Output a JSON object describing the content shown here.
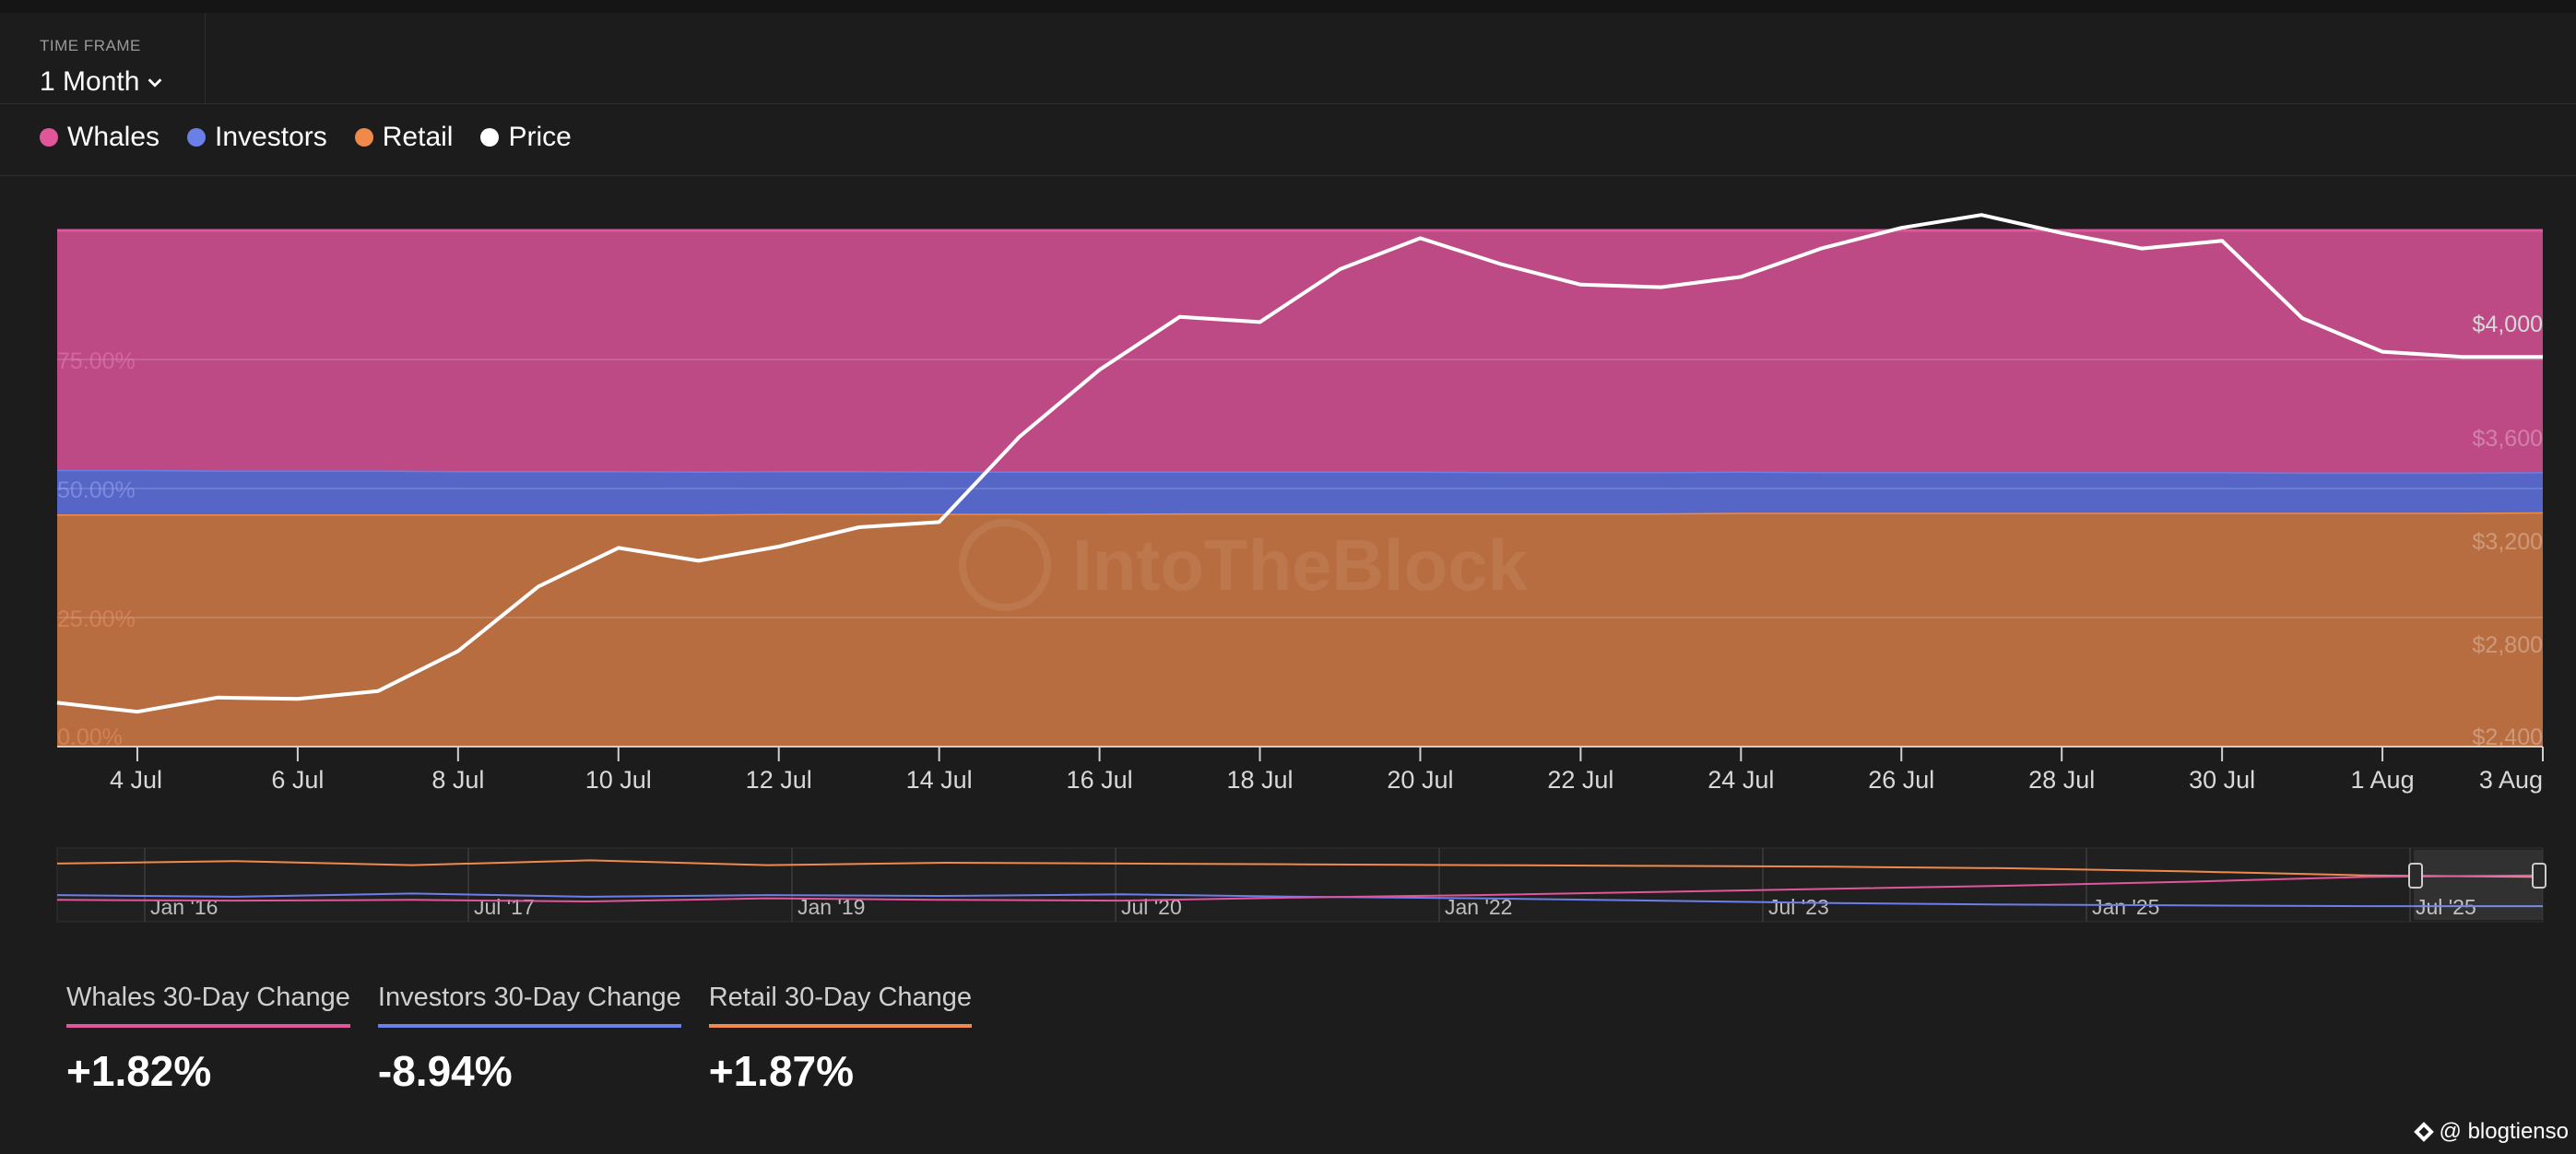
{
  "timeframe": {
    "label": "TIME FRAME",
    "value": "1 Month"
  },
  "legend": [
    {
      "name": "Whales",
      "color": "#e1559a"
    },
    {
      "name": "Investors",
      "color": "#6a7fe8"
    },
    {
      "name": "Retail",
      "color": "#f08a4b"
    },
    {
      "name": "Price",
      "color": "#ffffff"
    }
  ],
  "watermark": "IntoTheBlock",
  "chart_data": {
    "type": "area",
    "stacked_percent": true,
    "x": [
      "3 Jul",
      "4 Jul",
      "5 Jul",
      "6 Jul",
      "7 Jul",
      "8 Jul",
      "9 Jul",
      "10 Jul",
      "11 Jul",
      "12 Jul",
      "13 Jul",
      "14 Jul",
      "15 Jul",
      "16 Jul",
      "17 Jul",
      "18 Jul",
      "19 Jul",
      "20 Jul",
      "21 Jul",
      "22 Jul",
      "23 Jul",
      "24 Jul",
      "25 Jul",
      "26 Jul",
      "27 Jul",
      "28 Jul",
      "29 Jul",
      "30 Jul",
      "31 Jul",
      "1 Aug",
      "2 Aug",
      "3 Aug"
    ],
    "x_tick_labels": [
      "4 Jul",
      "6 Jul",
      "8 Jul",
      "10 Jul",
      "12 Jul",
      "14 Jul",
      "16 Jul",
      "18 Jul",
      "20 Jul",
      "22 Jul",
      "24 Jul",
      "26 Jul",
      "28 Jul",
      "30 Jul",
      "1 Aug",
      "3 Aug"
    ],
    "series": [
      {
        "name": "Retail",
        "axis": "left",
        "values": [
          45.0,
          45.0,
          45.0,
          45.0,
          45.0,
          45.0,
          45.0,
          45.0,
          45.0,
          45.1,
          45.1,
          45.1,
          45.1,
          45.1,
          45.2,
          45.2,
          45.2,
          45.2,
          45.2,
          45.2,
          45.2,
          45.3,
          45.3,
          45.3,
          45.3,
          45.3,
          45.3,
          45.3,
          45.3,
          45.3,
          45.3,
          45.4
        ]
      },
      {
        "name": "Investors",
        "axis": "left",
        "values": [
          8.6,
          8.6,
          8.5,
          8.5,
          8.5,
          8.4,
          8.4,
          8.4,
          8.3,
          8.3,
          8.3,
          8.2,
          8.2,
          8.2,
          8.1,
          8.1,
          8.1,
          8.1,
          8.0,
          8.0,
          8.0,
          8.0,
          7.9,
          7.9,
          7.9,
          7.9,
          7.9,
          7.9,
          7.8,
          7.8,
          7.8,
          7.8
        ]
      },
      {
        "name": "Whales",
        "axis": "left",
        "values": [
          46.4,
          46.4,
          46.5,
          46.5,
          46.5,
          46.6,
          46.6,
          46.6,
          46.7,
          46.6,
          46.6,
          46.7,
          46.7,
          46.7,
          46.7,
          46.7,
          46.7,
          46.7,
          46.8,
          46.8,
          46.8,
          46.7,
          46.8,
          46.8,
          46.8,
          46.8,
          46.8,
          46.8,
          46.9,
          46.9,
          46.9,
          46.8
        ]
      },
      {
        "name": "Price",
        "axis": "right",
        "values": [
          2570,
          2535,
          2590,
          2585,
          2615,
          2770,
          3020,
          3170,
          3120,
          3175,
          3250,
          3270,
          3600,
          3860,
          4065,
          4045,
          4250,
          4370,
          4270,
          4190,
          4180,
          4220,
          4330,
          4410,
          4460,
          4390,
          4330,
          4360,
          4060,
          3930,
          3910,
          3910
        ]
      }
    ],
    "ylim_left": [
      0,
      100
    ],
    "yticks_left": [
      0,
      25,
      50,
      75
    ],
    "ytick_labels_left": [
      "0.00%",
      "25.00%",
      "50.00%",
      "75.00%"
    ],
    "ylim_right": [
      2400,
      4400
    ],
    "yticks_right": [
      2400,
      2800,
      3200,
      3600,
      4000
    ],
    "ytick_labels_right": [
      "$2,400",
      "$2,800",
      "$3,200",
      "$3,600",
      "$4,000"
    ],
    "grid": true,
    "legend_position": "top-left",
    "navigator": {
      "tick_labels": [
        "Jan '16",
        "Jul '17",
        "Jan '19",
        "Jul '20",
        "Jan '22",
        "Jul '23",
        "Jan '25",
        "Jul '25"
      ],
      "series": [
        {
          "name": "Retail",
          "values": [
            62,
            65,
            60,
            66,
            60,
            63,
            62,
            61,
            60,
            59,
            58,
            56,
            52,
            47,
            45
          ]
        },
        {
          "name": "Investors",
          "values": [
            22,
            20,
            24,
            20,
            22,
            21,
            23,
            20,
            18,
            15,
            12,
            10,
            9,
            8,
            8
          ]
        },
        {
          "name": "Whales",
          "values": [
            16,
            15,
            16,
            14,
            18,
            16,
            15,
            19,
            22,
            26,
            30,
            34,
            39,
            45,
            47
          ]
        }
      ]
    }
  },
  "stats": [
    {
      "label": "Whales 30-Day Change",
      "value": "+1.82%",
      "color": "#e1559a"
    },
    {
      "label": "Investors 30-Day Change",
      "value": "-8.94%",
      "color": "#6a7fe8"
    },
    {
      "label": "Retail 30-Day Change",
      "value": "+1.87%",
      "color": "#f08a4b"
    }
  ],
  "credit": "@ blogtienso"
}
